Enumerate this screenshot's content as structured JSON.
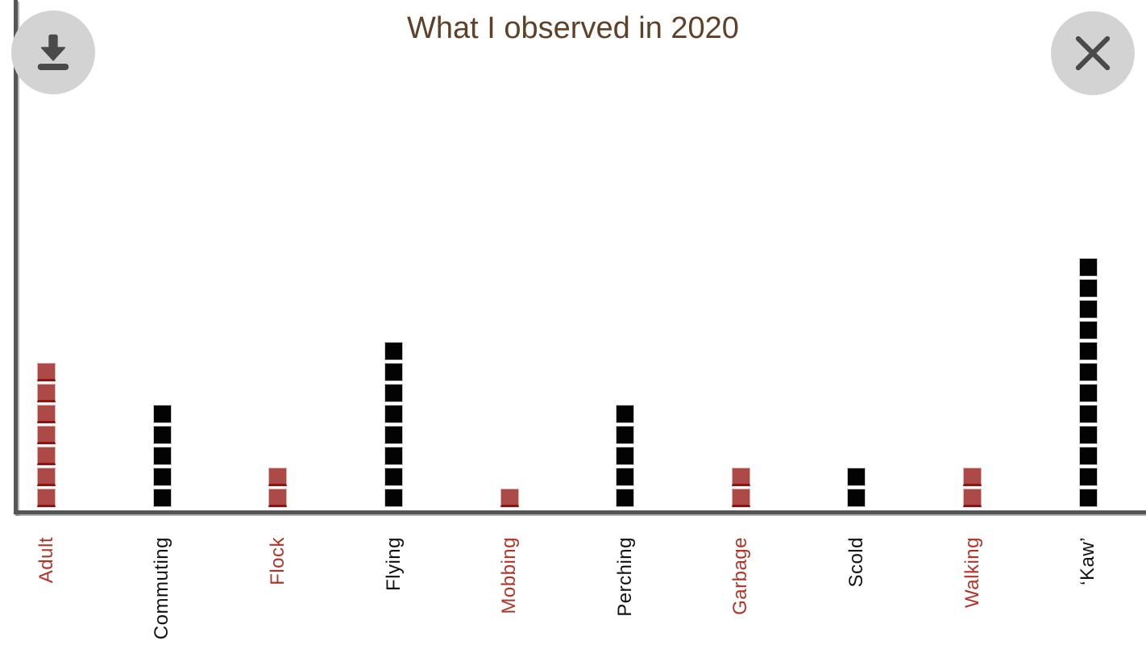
{
  "modal": {
    "title": "What I observed in 2020",
    "title_color": "#5e4127",
    "toolbar": {
      "download_icon": "download-icon",
      "close_icon": "close-icon"
    }
  },
  "chart_data": {
    "type": "bar",
    "subtype": "pictograph-stacked-squares",
    "title": "What I observed in 2020",
    "categories": [
      "Adult",
      "Commuting",
      "Flock",
      "Flying",
      "Mobbing",
      "Perching",
      "Garbage",
      "Scold",
      "Walking",
      "‘Kaw’"
    ],
    "values": [
      7,
      5,
      2,
      8,
      1,
      5,
      2,
      2,
      2,
      12
    ],
    "category_colors": [
      "red",
      "black",
      "red",
      "black",
      "red",
      "black",
      "red",
      "black",
      "red",
      "black"
    ],
    "block_unit": 1,
    "xlabel": "",
    "ylabel": "",
    "grid": false,
    "legend": false,
    "label_rotation_degrees": 90,
    "palette": {
      "red_block_fill": "#ad4a47",
      "red_block_bottom_edge": "#8e1311",
      "red_block_outline": "#ddb3b1",
      "black_block_fill": "#030303",
      "black_block_outline": "#c9c9c9",
      "red_label": "#b0352b",
      "black_label": "#111111",
      "axis_color": "#565656",
      "title_color": "#5e4127",
      "button_circle": "#d3d3d3",
      "button_glyph": "#4a4a4a"
    }
  }
}
